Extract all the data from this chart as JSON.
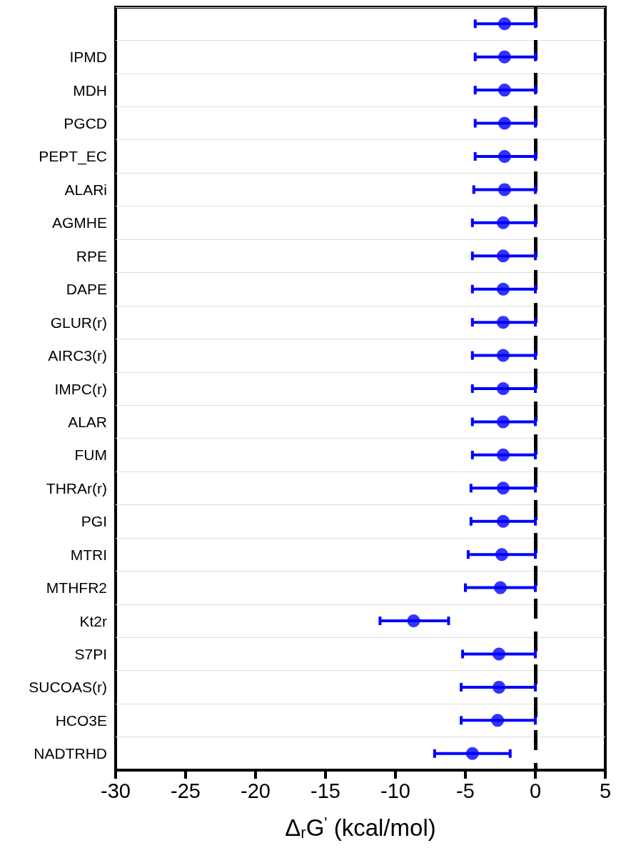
{
  "chart_data": {
    "type": "scatter",
    "orientation": "horizontal",
    "xlabel": "Δ$_{r}$G$^{'}$ (kcal/mol)",
    "categories": [
      null,
      "IPMD",
      "MDH",
      "PGCD",
      "PEPT_EC",
      "ALARi",
      "AGMHE",
      "RPE",
      "DAPE",
      "GLUR(r)",
      "AIRC3(r)",
      "IMPC(r)",
      "ALAR",
      "FUM",
      "THRAr(r)",
      "PGI",
      "MTRI",
      "MTHFR2",
      "Kt2r",
      "S7PI",
      "SUCOAS(r)",
      "HCO3E",
      "NADTRHD"
    ],
    "series": [
      {
        "color": "#0000ff",
        "values": [
          -2.2,
          -2.2,
          -2.2,
          -2.2,
          -2.2,
          -2.2,
          -2.3,
          -2.3,
          -2.3,
          -2.3,
          -2.3,
          -2.3,
          -2.3,
          -2.3,
          -2.3,
          -2.3,
          -2.4,
          -2.5,
          -8.7,
          -2.6,
          -2.6,
          -2.7,
          -4.5
        ],
        "errors": [
          [
            -4.3,
            0
          ],
          [
            -4.3,
            0
          ],
          [
            -4.3,
            0
          ],
          [
            -4.3,
            0
          ],
          [
            -4.3,
            0
          ],
          [
            -4.4,
            0
          ],
          [
            -4.5,
            0
          ],
          [
            -4.5,
            0
          ],
          [
            -4.5,
            0
          ],
          [
            -4.5,
            0
          ],
          [
            -4.5,
            0
          ],
          [
            -4.5,
            0
          ],
          [
            -4.5,
            0
          ],
          [
            -4.5,
            0
          ],
          [
            -4.6,
            0
          ],
          [
            -4.6,
            0
          ],
          [
            -4.8,
            0
          ],
          [
            -5.0,
            0
          ],
          [
            -11.1,
            -6.2
          ],
          [
            -5.2,
            0
          ],
          [
            -5.3,
            0
          ],
          [
            -5.3,
            0
          ],
          [
            -7.2,
            -1.8
          ]
        ]
      }
    ],
    "xlim": [
      -30,
      5
    ],
    "xticks": [
      -30,
      -25,
      -20,
      -15,
      -10,
      -5,
      0,
      5
    ],
    "ref_lines": [
      {
        "axis": "x",
        "value": 0,
        "label": null,
        "color": "#000000",
        "line_style": "dashed"
      }
    ],
    "grid": "y",
    "marker": "circle"
  }
}
